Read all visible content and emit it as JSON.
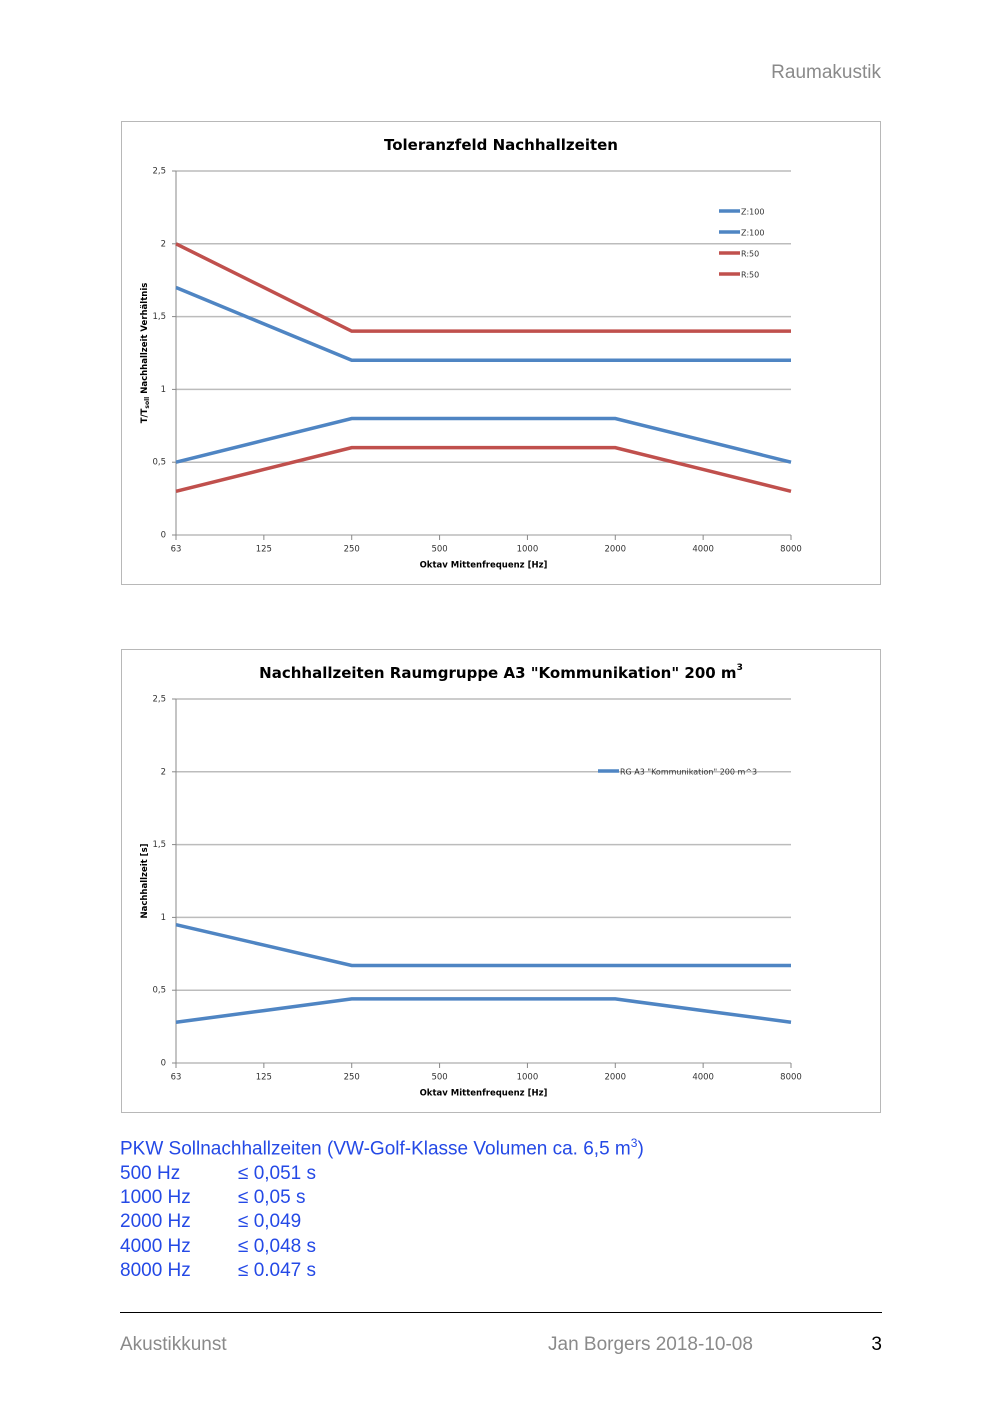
{
  "header": "Raumakustik",
  "chart_data": [
    {
      "type": "line",
      "title": "Toleranzfeld Nachhallzeiten",
      "xlabel": "Oktav Mittenfrequenz [Hz]",
      "ylabel": "T/T",
      "ylabel_sub": "soll",
      "ylabel_rest": "Nachhallzeit Verhältnis",
      "categories": [
        "63",
        "125",
        "250",
        "500",
        "1000",
        "2000",
        "4000",
        "8000"
      ],
      "ylim": [
        0,
        2.5
      ],
      "yticks": [
        0,
        {
          "value": 0.5,
          "label": "0,5"
        },
        1,
        {
          "value": 1.5,
          "label": "1,5"
        },
        2,
        {
          "value": 2.5,
          "label": "2,5"
        }
      ],
      "grid": true,
      "series": [
        {
          "name": "Z:100",
          "color": "#4f85c3",
          "values": [
            1.7,
            1.45,
            1.2,
            1.2,
            1.2,
            1.2,
            1.2,
            1.2
          ]
        },
        {
          "name": "Z:100",
          "color": "#4f85c3",
          "values": [
            0.5,
            0.65,
            0.8,
            0.8,
            0.8,
            0.8,
            0.65,
            0.5
          ]
        },
        {
          "name": "R:50",
          "color": "#c0504d",
          "values": [
            2,
            1.7,
            1.4,
            1.4,
            1.4,
            1.4,
            1.4,
            1.4
          ]
        },
        {
          "name": "R:50",
          "color": "#c0504d",
          "values": [
            0.3,
            0.45,
            0.6,
            0.6,
            0.6,
            0.6,
            0.45,
            0.3
          ]
        }
      ]
    },
    {
      "type": "line",
      "title": "Nachhallzeiten Raumgruppe A3 \"Kommunikation\" 200 m",
      "title_sup": "3",
      "xlabel": "Oktav Mittenfrequenz [Hz]",
      "ylabel": "Nachhallzeit [s]",
      "categories": [
        "63",
        "125",
        "250",
        "500",
        "1000",
        "2000",
        "4000",
        "8000"
      ],
      "ylim": [
        0,
        2.5
      ],
      "yticks": [
        0,
        {
          "value": 0.5,
          "label": "0,5"
        },
        1,
        {
          "value": 1.5,
          "label": "1,5"
        },
        2,
        {
          "value": 2.5,
          "label": "2,5"
        }
      ],
      "grid": true,
      "series": [
        {
          "name": "RG A3 \"Kommunikation\" 200 m^3",
          "color": "#4f85c3",
          "values": [
            0.95,
            0.81,
            0.67,
            0.67,
            0.67,
            0.67,
            0.67,
            0.67
          ]
        },
        {
          "color": "#4f85c3",
          "values": [
            0.28,
            0.36,
            0.44,
            0.44,
            0.44,
            0.44,
            0.36,
            0.28
          ]
        }
      ]
    }
  ],
  "notes": {
    "heading": "PKW Sollnachhallzeiten (VW-Golf-Klasse Volumen ca. 6,5 m",
    "heading_sup": "3",
    "heading_end": ")",
    "rows": [
      [
        "500 Hz",
        "≤ 0,051 s"
      ],
      [
        "1000 Hz",
        "≤ 0,05 s"
      ],
      [
        "2000 Hz",
        "≤ 0,049"
      ],
      [
        "4000 Hz",
        "≤ 0,048 s"
      ],
      [
        "8000 Hz",
        "≤ 0.047 s"
      ]
    ]
  },
  "footer": {
    "left": "Akustikkunst",
    "center": "Jan Borgers 2018-10-08",
    "page": "3"
  }
}
